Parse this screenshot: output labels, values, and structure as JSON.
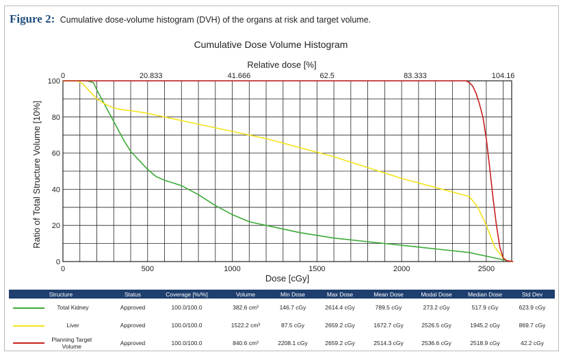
{
  "caption": {
    "figure_label": "Figure 2:",
    "text": "Cumulative dose-volume histogram (DVH) of the organs at risk and target volume."
  },
  "chart_data": {
    "type": "line",
    "title": "Cumulative Dose Volume Histogram",
    "xlabel": "Dose [cGy]",
    "ylabel": "Ratio of Total Structure Volume [10%]",
    "top_axis_label": "Relative dose [%]",
    "xlim": [
      0,
      2650
    ],
    "ylim": [
      0,
      100
    ],
    "x_ticks": [
      "0",
      "500",
      "1000",
      "1500",
      "2000",
      "2500"
    ],
    "y_ticks": [
      "0",
      "20",
      "40",
      "60",
      "80",
      "100"
    ],
    "top_ticks": [
      "0",
      "20.833",
      "41.666",
      "62.5",
      "83.333",
      "104.16"
    ],
    "top_tick_doses": [
      0,
      520,
      1040,
      1560,
      2080,
      2600
    ],
    "grid": true,
    "series": [
      {
        "name": "Total Kidney",
        "color": "#3aaa35",
        "x": [
          0,
          140,
          180,
          200,
          240,
          280,
          320,
          360,
          400,
          450,
          500,
          550,
          600,
          700,
          800,
          900,
          1000,
          1100,
          1200,
          1400,
          1600,
          1800,
          2000,
          2200,
          2400,
          2500,
          2600,
          2650
        ],
        "y": [
          100,
          100,
          99,
          95,
          88,
          81,
          74,
          67,
          61,
          56,
          51,
          47,
          45,
          42,
          37,
          31,
          26,
          22,
          20,
          16,
          13,
          11,
          9,
          7,
          5,
          3,
          1,
          0
        ]
      },
      {
        "name": "Liver",
        "color": "#f2e318",
        "x": [
          0,
          87,
          120,
          160,
          200,
          250,
          300,
          350,
          400,
          500,
          600,
          800,
          1000,
          1200,
          1400,
          1600,
          1800,
          2000,
          2200,
          2400,
          2450,
          2500,
          2550,
          2600,
          2620,
          2659
        ],
        "y": [
          100,
          100,
          98,
          94,
          90,
          87,
          85,
          84,
          83.5,
          82,
          80,
          76,
          72,
          68,
          63,
          58,
          52,
          46,
          41,
          36,
          30,
          20,
          8,
          2,
          0.5,
          0
        ]
      },
      {
        "name": "Planning Target Volume",
        "color": "#c81e1e",
        "x": [
          0,
          2208,
          2380,
          2400,
          2420,
          2440,
          2460,
          2480,
          2500,
          2520,
          2540,
          2560,
          2580,
          2600,
          2620,
          2659
        ],
        "y": [
          100,
          100,
          100,
          99,
          97,
          93,
          87,
          80,
          68,
          52,
          35,
          20,
          8,
          2,
          0.5,
          0
        ]
      }
    ]
  },
  "table": {
    "headers": [
      "Structure",
      "Status",
      "Coverage [%/%]",
      "Volume",
      "Min Dose",
      "Max Dose",
      "Mean Dose",
      "Modal Dose",
      "Median Dose",
      "Std Dev"
    ],
    "rows": [
      {
        "color": "#3aaa35",
        "structure": "Total Kidney",
        "status": "Approved",
        "coverage": "100.0/100.0",
        "volume": "382.6 cm³",
        "min_dose": "146.7 cGy",
        "max_dose": "2614.4 cGy",
        "mean_dose": "789.5 cGy",
        "modal_dose": "273.2 cGy",
        "median_dose": "517.9 cGy",
        "std_dev": "623.9 cGy"
      },
      {
        "color": "#f2e318",
        "structure": "Liver",
        "status": "Approved",
        "coverage": "100.0/100.0",
        "volume": "1522.2 cm³",
        "min_dose": "87.5 cGy",
        "max_dose": "2659.2 cGy",
        "mean_dose": "1672.7 cGy",
        "modal_dose": "2526.5 cGy",
        "median_dose": "1945.2 cGy",
        "std_dev": "869.7 cGy"
      },
      {
        "color": "#c81e1e",
        "structure_line1": "Planning Target",
        "structure_line2": "Volume",
        "status": "Approved",
        "coverage": "100.0/100.0",
        "volume": "840.6 cm³",
        "min_dose": "2208.1 cGy",
        "max_dose": "2659.2 cGy",
        "mean_dose": "2514.3 cGy",
        "modal_dose": "2536.6 cGy",
        "median_dose": "2518.9 cGy",
        "std_dev": "42.2 cGy"
      }
    ]
  }
}
